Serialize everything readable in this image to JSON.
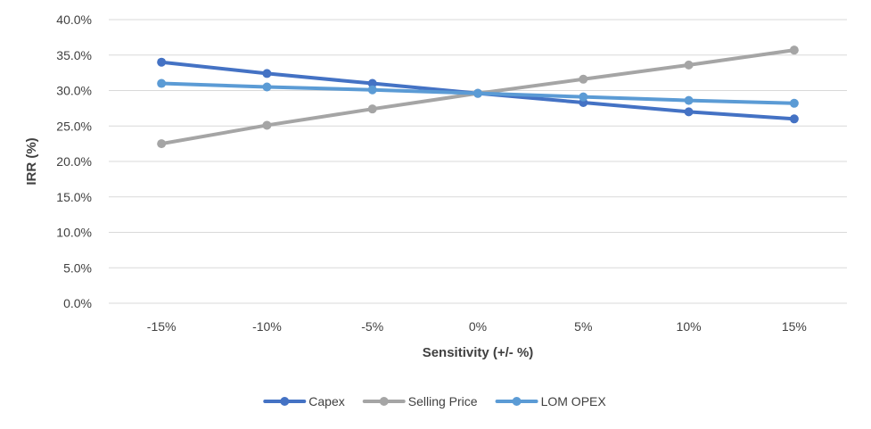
{
  "chart_data": {
    "type": "line",
    "title": "",
    "xlabel": "Sensitivity (+/- %)",
    "ylabel": "IRR (%)",
    "categories": [
      "-15%",
      "-10%",
      "-5%",
      "0%",
      "5%",
      "10%",
      "15%"
    ],
    "ylim": [
      0,
      40
    ],
    "y_ticks": [
      "0.0%",
      "5.0%",
      "10.0%",
      "15.0%",
      "20.0%",
      "25.0%",
      "30.0%",
      "35.0%",
      "40.0%"
    ],
    "grid": true,
    "legend_position": "bottom",
    "series": [
      {
        "name": "Capex",
        "color": "#4472C4",
        "values": [
          34.0,
          32.4,
          31.0,
          29.6,
          28.3,
          27.0,
          26.0
        ]
      },
      {
        "name": "Selling Price",
        "color": "#A5A5A5",
        "values": [
          22.5,
          25.1,
          27.4,
          29.6,
          31.6,
          33.6,
          35.7
        ]
      },
      {
        "name": "LOM OPEX",
        "color": "#5B9BD5",
        "values": [
          31.0,
          30.5,
          30.1,
          29.6,
          29.1,
          28.6,
          28.2
        ]
      }
    ]
  }
}
